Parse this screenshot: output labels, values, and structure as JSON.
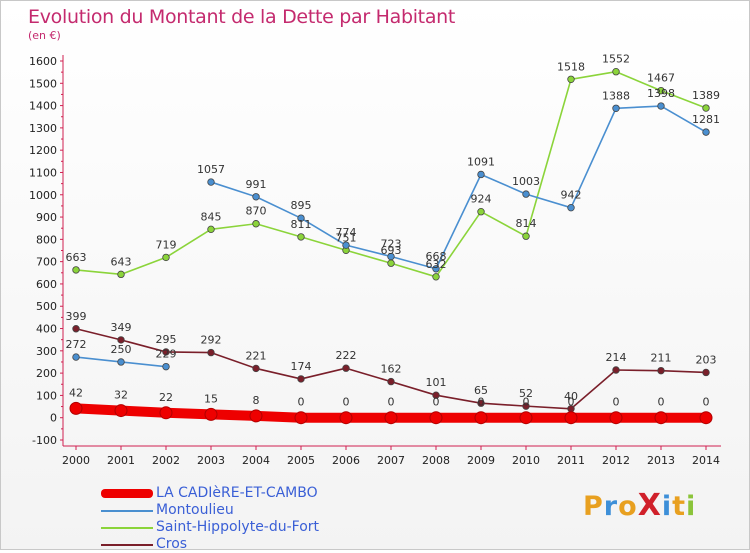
{
  "header": {
    "title": "Evolution du Montant de la Dette par Habitant",
    "subtitle": "(en €)"
  },
  "chart_data": {
    "type": "line",
    "title": "Evolution du Montant de la Dette par Habitant",
    "subtitle": "(en €)",
    "xlabel": "",
    "ylabel": "",
    "x": [
      "2000",
      "2001",
      "2002",
      "2003",
      "2004",
      "2005",
      "2006",
      "2007",
      "2008",
      "2009",
      "2010",
      "2011",
      "2012",
      "2013",
      "2014"
    ],
    "ylim": [
      -100,
      1600
    ],
    "yticks": [
      -100,
      0,
      100,
      200,
      300,
      400,
      500,
      600,
      700,
      800,
      900,
      1000,
      1100,
      1200,
      1300,
      1400,
      1500,
      1600
    ],
    "grid": false,
    "legend_position": "bottom-left",
    "series": [
      {
        "name": "LA CADIèRE-ET-CAMBO",
        "color": "#ee0000",
        "values": [
          42,
          32,
          22,
          15,
          8,
          0,
          0,
          0,
          0,
          0,
          0,
          0,
          0,
          0,
          0
        ],
        "labels": [
          "42",
          "32",
          "22",
          "15",
          "8",
          "0",
          "0",
          "0",
          "0",
          "0",
          "0",
          "0",
          "0",
          "0",
          "0"
        ]
      },
      {
        "name": "Montoulieu",
        "color": "#4a8fd0",
        "values": [
          272,
          250,
          229,
          1057,
          991,
          895,
          774,
          723,
          668,
          1091,
          1003,
          942,
          1388,
          1398,
          1281
        ],
        "labels": [
          "272",
          "250",
          "229",
          "1057",
          "991",
          "895",
          "774",
          "723",
          "668",
          "1091",
          "1003",
          "942",
          "1388",
          "1398",
          "1281"
        ]
      },
      {
        "name": "Saint-Hippolyte-du-Fort",
        "color": "#8bd43a",
        "values": [
          663,
          643,
          719,
          845,
          870,
          811,
          751,
          693,
          632,
          924,
          814,
          1518,
          1552,
          1467,
          1389
        ],
        "labels": [
          "663",
          "643",
          "719",
          "845",
          "870",
          "811",
          "751",
          "693",
          "632",
          "924",
          "814",
          "1518",
          "1552",
          "1467",
          "1389"
        ]
      },
      {
        "name": "Cros",
        "color": "#7a1f2a",
        "values": [
          399,
          349,
          295,
          292,
          221,
          174,
          222,
          162,
          101,
          65,
          52,
          40,
          214,
          211,
          203
        ],
        "labels": [
          "399",
          "349",
          "295",
          "292",
          "221",
          "174",
          "222",
          "162",
          "101",
          "65",
          "52",
          "40",
          "214",
          "211",
          "203"
        ]
      }
    ]
  },
  "legend": {
    "items": [
      {
        "label": "LA CADIèRE-ET-CAMBO",
        "color": "#ee0000"
      },
      {
        "label": "Montoulieu",
        "color": "#4a8fd0"
      },
      {
        "label": "Saint-Hippolyte-du-Fort",
        "color": "#8bd43a"
      },
      {
        "label": "Cros",
        "color": "#7a1f2a"
      }
    ]
  },
  "brand": {
    "text": "ProXiti",
    "letters": [
      {
        "ch": "P",
        "color": "#e8a020"
      },
      {
        "ch": "r",
        "color": "#3d8fd8"
      },
      {
        "ch": "o",
        "color": "#e8a020"
      },
      {
        "ch": "X",
        "color": "#d0202a"
      },
      {
        "ch": "i",
        "color": "#3d8fd8"
      },
      {
        "ch": "t",
        "color": "#e8a020"
      },
      {
        "ch": "i",
        "color": "#8bc43a"
      }
    ]
  }
}
